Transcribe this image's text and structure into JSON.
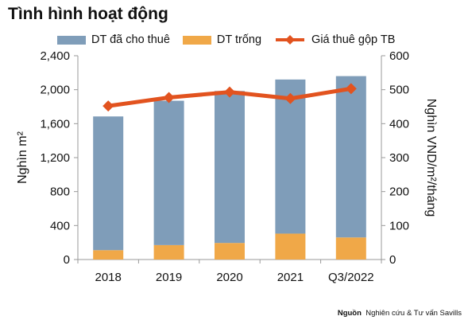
{
  "title": "Tình hình hoạt động",
  "source": {
    "label": "Nguồn",
    "text": "Nghiên cứu & Tư vấn Savills"
  },
  "colors": {
    "leased": "#7f9db9",
    "vacant": "#f0a848",
    "rent": "#e2531f",
    "axis": "#999999"
  },
  "chart_data": {
    "type": "bar",
    "stacked": true,
    "categories": [
      "2018",
      "2019",
      "2020",
      "2021",
      "Q3/2022"
    ],
    "series": [
      {
        "name": "DT đã cho thuê",
        "type": "bar",
        "axis": "left",
        "values": [
          1575,
          1700,
          1790,
          1815,
          1900
        ]
      },
      {
        "name": "DT trống",
        "type": "bar",
        "axis": "left",
        "values": [
          110,
          170,
          195,
          305,
          260
        ]
      },
      {
        "name": "Giá thuê gộp TB",
        "type": "line",
        "axis": "right",
        "values": [
          452,
          477,
          493,
          474,
          503
        ]
      }
    ],
    "ylabel": "Nghìn m²",
    "y2label": "Nghìn VND/m²/tháng",
    "ylim": [
      0,
      2400
    ],
    "y2lim": [
      0,
      600
    ],
    "yticks": [
      "0",
      "400",
      "800",
      "1,200",
      "1,600",
      "2,000",
      "2,400"
    ],
    "y2ticks": [
      "0",
      "100",
      "200",
      "300",
      "400",
      "500",
      "600"
    ],
    "legend_position": "top"
  }
}
